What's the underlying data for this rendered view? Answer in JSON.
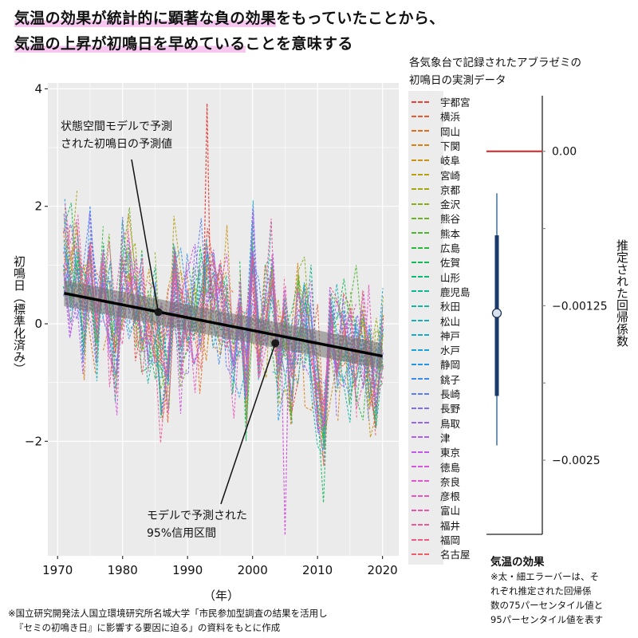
{
  "title": {
    "line1_highlight": "気温の効果が統計的に顕著な負の効果",
    "line1_rest": "をもっていたことから、",
    "line2_highlight": "気温の上昇が初鳴日を早めている",
    "line2_rest": "ことを意味する"
  },
  "legend": {
    "title_line1": "各気象台で記録されたアブラゼミの",
    "title_line2": "初鳴日の実測データ",
    "items": [
      {
        "label": "宇都宮",
        "color": "#e8413a"
      },
      {
        "label": "横浜",
        "color": "#ea5a2e"
      },
      {
        "label": "岡山",
        "color": "#e36d1d"
      },
      {
        "label": "下関",
        "color": "#d98015"
      },
      {
        "label": "岐阜",
        "color": "#c99212"
      },
      {
        "label": "宮崎",
        "color": "#b7a012"
      },
      {
        "label": "京都",
        "color": "#a2a814"
      },
      {
        "label": "金沢",
        "color": "#88ae1b"
      },
      {
        "label": "熊谷",
        "color": "#6bb324"
      },
      {
        "label": "熊本",
        "color": "#4cb52f"
      },
      {
        "label": "広島",
        "color": "#2cb83f"
      },
      {
        "label": "佐賀",
        "color": "#14b95a"
      },
      {
        "label": "山形",
        "color": "#0fb875"
      },
      {
        "label": "鹿児島",
        "color": "#10b68d"
      },
      {
        "label": "秋田",
        "color": "#14b3a3"
      },
      {
        "label": "松山",
        "color": "#17b0b7"
      },
      {
        "label": "神戸",
        "color": "#18aac9"
      },
      {
        "label": "水戸",
        "color": "#1ba2d9"
      },
      {
        "label": "静岡",
        "color": "#2397e6"
      },
      {
        "label": "銚子",
        "color": "#3a8aef"
      },
      {
        "label": "長崎",
        "color": "#5a7cf4"
      },
      {
        "label": "長野",
        "color": "#7a6ff5"
      },
      {
        "label": "鳥取",
        "color": "#9666f3"
      },
      {
        "label": "津",
        "color": "#ad5fee"
      },
      {
        "label": "東京",
        "color": "#c15ae6"
      },
      {
        "label": "徳島",
        "color": "#d257dc"
      },
      {
        "label": "奈良",
        "color": "#df55ce"
      },
      {
        "label": "彦根",
        "color": "#e855bd"
      },
      {
        "label": "富山",
        "color": "#ec56aa"
      },
      {
        "label": "福井",
        "color": "#ee5896"
      },
      {
        "label": "福岡",
        "color": "#ed5c80"
      },
      {
        "label": "名古屋",
        "color": "#eb5e6a"
      }
    ]
  },
  "annotations": {
    "predicted_line1": "状態空間モデルで予測",
    "predicted_line2": "された初鳴日の予測値",
    "ci_line1": "モデルで予測された",
    "ci_line2": "95%信用区間"
  },
  "axis_labels": {
    "y_left": "初鳴日（標準化済み）",
    "x": "（年）",
    "y_right": "推定された回帰係数"
  },
  "coef_panel": {
    "title": "気温の効果",
    "note_lines": [
      "※太・細エラーバーは、そ",
      "れぞれ推定された回帰係",
      "数の75パーセンタイル値と",
      "95パーセンタイル値を表す"
    ]
  },
  "source_note": {
    "line1": "※国立研究開発法人国立環境研究所名城大学「市民参加型調査の結果を活用し",
    "line2": "『セミの初鳴き日』に影響する要因に迫る」の資料をもとに作成"
  },
  "colors": {
    "panel_bg": "#ebebeb",
    "grid": "#ffffff",
    "trend": "#000000",
    "ci_band": "#707070",
    "zero_line": "#d9201e",
    "bar_thick": "#1a3a6e",
    "bar_thin": "#1f5c8f",
    "point_fill": "#d6e2ee",
    "highlight": "#f6c8f0"
  },
  "chart_data": [
    {
      "type": "line",
      "title": "",
      "xlabel": "（年）",
      "ylabel": "初鳴日（標準化済み）",
      "xlim": [
        1968.5,
        2022.5
      ],
      "ylim": [
        -3.95,
        4.1
      ],
      "x_ticks": [
        1970,
        1980,
        1990,
        2000,
        2010,
        2020
      ],
      "x_tick_labels": [
        "1970",
        "1980",
        "1990",
        "2000",
        "2010",
        "2020"
      ],
      "y_ticks": [
        -2,
        0,
        2,
        4
      ],
      "y_tick_labels": [
        "−2",
        "0",
        "2",
        "4"
      ],
      "grid": true,
      "legend_position": "right",
      "year_range": [
        1971,
        2020
      ],
      "series_note": "32 station series, dashed, standardized first-call day; values approximated",
      "trend": {
        "name": "状態空間モデルで予測された初鳴日の予測値",
        "x": [
          1971,
          2020
        ],
        "y": [
          0.52,
          -0.55
        ]
      },
      "ci_band": {
        "name": "モデルで予測された95%信用区間",
        "half_width": 0.22
      },
      "marked_points": [
        {
          "x": 1985.5,
          "y": 0.2
        },
        {
          "x": 2003.5,
          "y": -0.33
        }
      ],
      "notable_extremes": [
        {
          "series": "宇都宮",
          "x": 1993,
          "y": 3.75
        },
        {
          "series": "徳島",
          "x": 2005,
          "y": -3.6
        }
      ]
    },
    {
      "type": "errorbar",
      "title": "気温の効果",
      "ylabel": "推定された回帰係数",
      "ylim": [
        -0.0031,
        0.00045
      ],
      "y_ticks": [
        0,
        -0.000625,
        -0.00125,
        -0.001875,
        -0.0025
      ],
      "y_tick_labels": [
        "0.00",
        "",
        "−0.00125",
        "",
        "−0.0025"
      ],
      "reference_line": 0,
      "estimate": -0.00131,
      "interval_75": [
        -0.00198,
        -0.00068
      ],
      "interval_95": [
        -0.00238,
        -0.00034
      ]
    }
  ]
}
